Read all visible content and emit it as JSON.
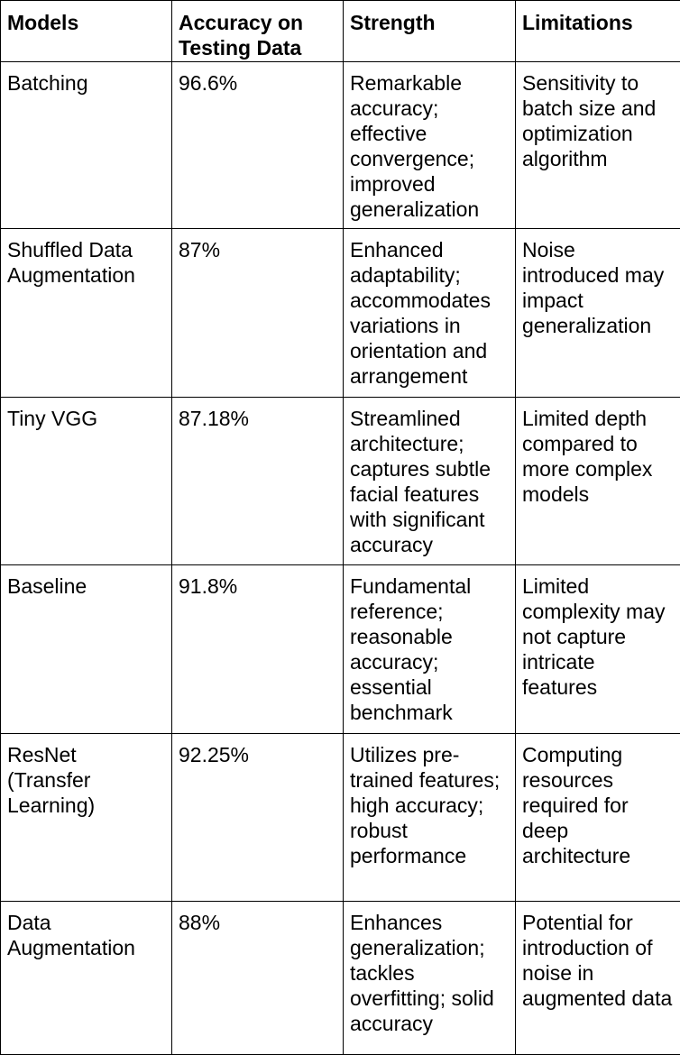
{
  "table": {
    "headers": [
      "Models",
      "Accuracy on Testing Data",
      "Strength",
      "Limitations"
    ],
    "rows": [
      [
        "Batching",
        "96.6%",
        "Remarkable accuracy; effective convergence; improved generalization",
        "Sensitivity to batch size and optimization algorithm"
      ],
      [
        "Shuffled Data Augmentation",
        "87%",
        "Enhanced adaptability; accommodates variations in orientation and arrangement",
        "Noise introduced may impact generalization"
      ],
      [
        "Tiny VGG",
        "87.18%",
        "Streamlined architecture; captures subtle facial features with significant accuracy",
        "Limited depth compared to more complex models"
      ],
      [
        "Baseline",
        "91.8%",
        "Fundamental reference; reasonable accuracy; essential benchmark",
        "Limited complexity may not capture intricate features"
      ],
      [
        "ResNet (Transfer Learning)",
        "92.25%",
        "Utilizes pre-trained features; high accuracy; robust performance",
        "Computing resources required for deep architecture"
      ],
      [
        "Data Augmentation",
        "88%",
        "Enhances generalization; tackles overfitting; solid accuracy",
        "Potential for introduction of noise in augmented data"
      ]
    ]
  }
}
